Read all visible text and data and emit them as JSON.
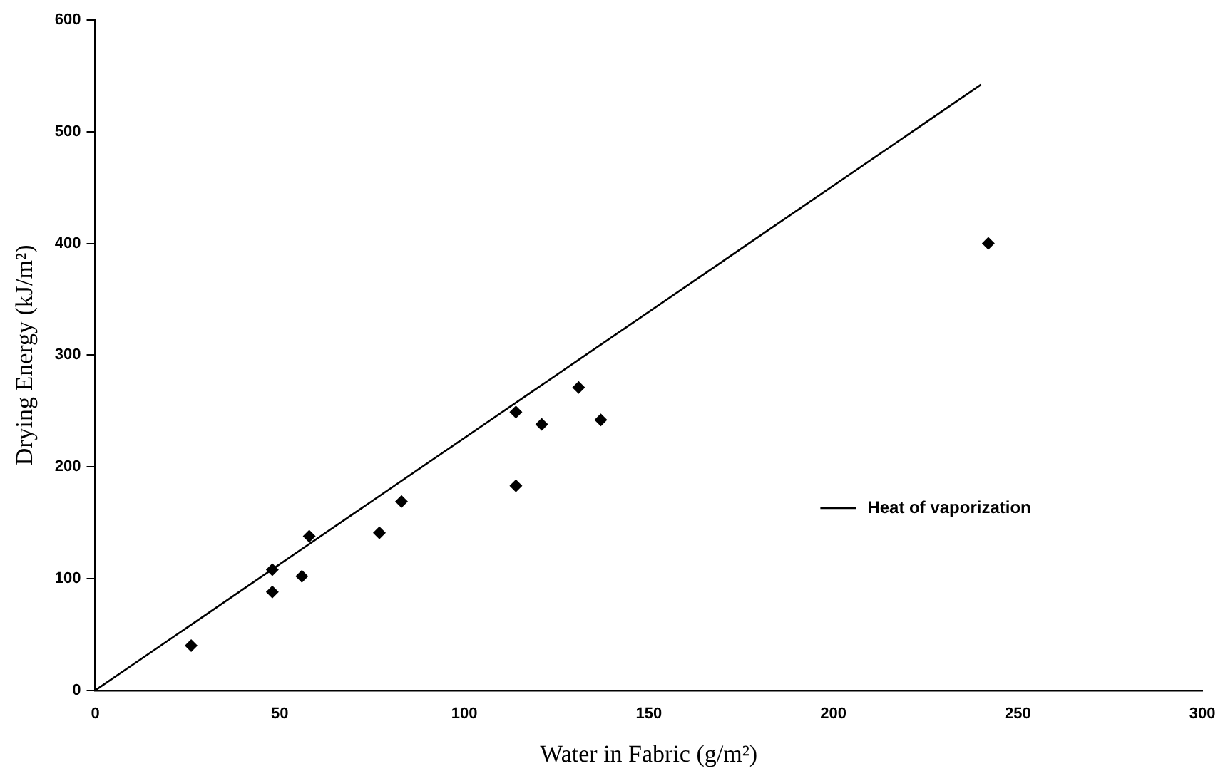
{
  "chart_data": {
    "type": "scatter",
    "xlabel": "Water in Fabric (g/m²)",
    "ylabel": "Drying Energy (kJ/m²)",
    "xlim": [
      0,
      300
    ],
    "xticks": [
      0,
      50,
      100,
      150,
      200,
      250,
      300
    ],
    "ylim": [
      0,
      600
    ],
    "yticks": [
      0,
      100,
      200,
      300,
      400,
      500,
      600
    ],
    "grid": false,
    "legend": "right",
    "marker": "diamond",
    "series": [
      {
        "color": "#000000",
        "x": [
          26,
          48,
          48,
          56,
          58,
          77,
          83,
          114,
          114,
          121,
          131,
          137,
          242
        ],
        "values": [
          40,
          108,
          88,
          102,
          138,
          141,
          169,
          183,
          249,
          238,
          271,
          242,
          400
        ]
      },
      {
        "type": "line",
        "name": "Heat of vaporization",
        "color": "#000000",
        "marker": "none",
        "line_style": "solid",
        "x": [
          0,
          240
        ],
        "values": [
          0,
          542
        ]
      }
    ]
  }
}
